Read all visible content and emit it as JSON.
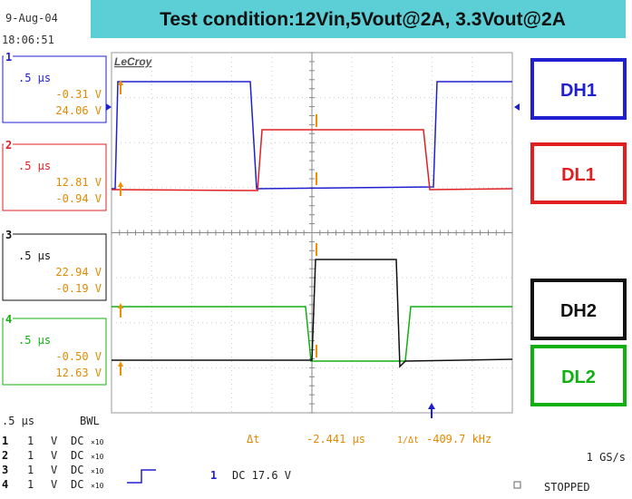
{
  "header": {
    "date": "9-Aug-04",
    "time": "18:06:51",
    "title": "Test condition:12Vin,5Vout@2A, 3.3Vout@2A",
    "brand": "LeCroy"
  },
  "channels": [
    {
      "number": "1",
      "timebase": ".5 μs",
      "line1": "-0.31 V",
      "line2": "24.06 V",
      "label": "DH1"
    },
    {
      "number": "2",
      "timebase": ".5 μs",
      "line1": "12.81 V",
      "line2": "-0.94 V",
      "label": "DL1"
    },
    {
      "number": "3",
      "timebase": ".5 μs",
      "line1": "22.94 V",
      "line2": "-0.19 V",
      "label": "DH2"
    },
    {
      "number": "4",
      "timebase": ".5 μs",
      "line1": "-0.50 V",
      "line2": "12.63 V",
      "label": "DL2"
    }
  ],
  "footer": {
    "timebase": ".5 μs",
    "bwl": "BWL",
    "rows": [
      {
        "number": "1",
        "scale": "1",
        "unit": "V",
        "coupling": "DC",
        "probe": "×10"
      },
      {
        "number": "2",
        "scale": "1",
        "unit": "V",
        "coupling": "DC",
        "probe": "×10"
      },
      {
        "number": "3",
        "scale": "1",
        "unit": "V",
        "coupling": "DC",
        "probe": "×10"
      },
      {
        "number": "4",
        "scale": "1",
        "unit": "V",
        "coupling": "DC",
        "probe": "×10"
      }
    ],
    "delta_label": "Δt",
    "delta_value": "-2.441 μs",
    "inverse_label": "1/Δt",
    "inverse_value": "-409.7 kHz",
    "trigger_channel": "1",
    "trigger_level": "DC 17.6 V",
    "sample_rate": "1 GS/s",
    "status": "STOPPED"
  }
}
